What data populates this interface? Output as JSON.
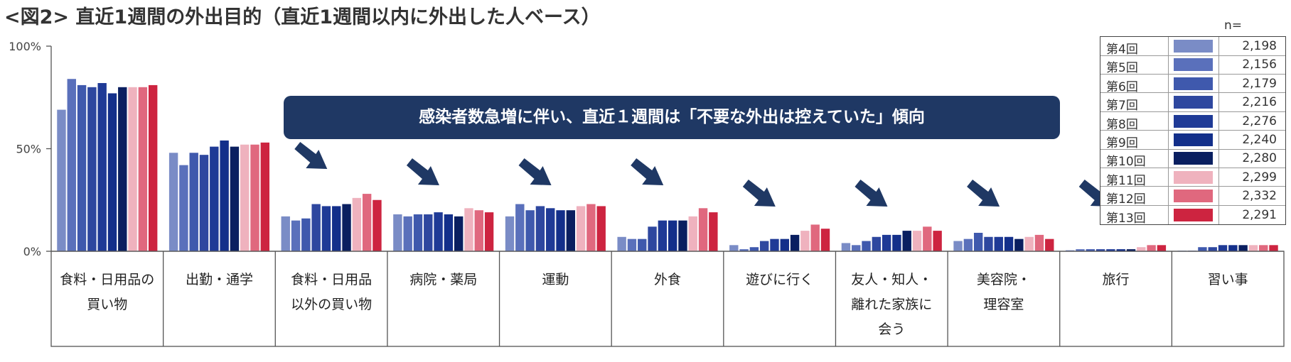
{
  "figure_title": "<図2> 直近1週間の外出目的（直近1週間以内に外出した人ベース）",
  "callout": "感染者数急増に伴い、直近１週間は「不要な外出は控えていた」傾向",
  "legend_n_label": "n=",
  "colors": [
    "#7a8cc6",
    "#5a70bb",
    "#3f59ad",
    "#2e479f",
    "#1f3a96",
    "#132f8a",
    "#0a1f60",
    "#efb2be",
    "#e0687e",
    "#cd2440"
  ],
  "arrow_color": "#1f3864",
  "chart_data": {
    "type": "bar",
    "ylim": [
      0,
      100
    ],
    "yticks": [
      "0%",
      "50%",
      "100%"
    ],
    "ytick_values": [
      0,
      50,
      100
    ],
    "categories": [
      "食料・日用品の\n買い物",
      "出勤・通学",
      "食料・日用品\n以外の買い物",
      "病院・薬局",
      "運動",
      "外食",
      "遊びに行く",
      "友人・知人・\n離れた家族に\n会う",
      "美容院・\n理容室",
      "旅行",
      "習い事"
    ],
    "series": [
      {
        "name": "第4回",
        "n": "2,198",
        "values": [
          69,
          48,
          17,
          18,
          17,
          7,
          3,
          4,
          5,
          0.5,
          0.3
        ]
      },
      {
        "name": "第5回",
        "n": "2,156",
        "values": [
          84,
          42,
          15,
          17,
          23,
          6,
          1,
          3,
          6,
          1,
          0.3
        ]
      },
      {
        "name": "第6回",
        "n": "2,179",
        "values": [
          81,
          48,
          16,
          18,
          20,
          6,
          2,
          5,
          9,
          1,
          2
        ]
      },
      {
        "name": "第7回",
        "n": "2,216",
        "values": [
          80,
          47,
          23,
          18,
          22,
          12,
          5,
          7,
          7,
          1,
          2
        ]
      },
      {
        "name": "第8回",
        "n": "2,276",
        "values": [
          82,
          51,
          22,
          19,
          21,
          15,
          6,
          8,
          7,
          1,
          3
        ]
      },
      {
        "name": "第9回",
        "n": "2,240",
        "values": [
          77,
          54,
          22,
          18,
          20,
          15,
          6,
          8,
          7,
          1,
          3
        ]
      },
      {
        "name": "第10回",
        "n": "2,280",
        "values": [
          80,
          51,
          23,
          17,
          20,
          15,
          8,
          10,
          6,
          1,
          3
        ]
      },
      {
        "name": "第11回",
        "n": "2,299",
        "values": [
          80,
          52,
          26,
          21,
          22,
          17,
          10,
          10,
          7,
          2,
          3
        ]
      },
      {
        "name": "第12回",
        "n": "2,332",
        "values": [
          80,
          52,
          28,
          20,
          23,
          21,
          13,
          12,
          8,
          3,
          3
        ]
      },
      {
        "name": "第13回",
        "n": "2,291",
        "values": [
          81,
          53,
          25,
          19,
          22,
          19,
          11,
          10,
          6,
          3,
          3
        ]
      }
    ]
  }
}
